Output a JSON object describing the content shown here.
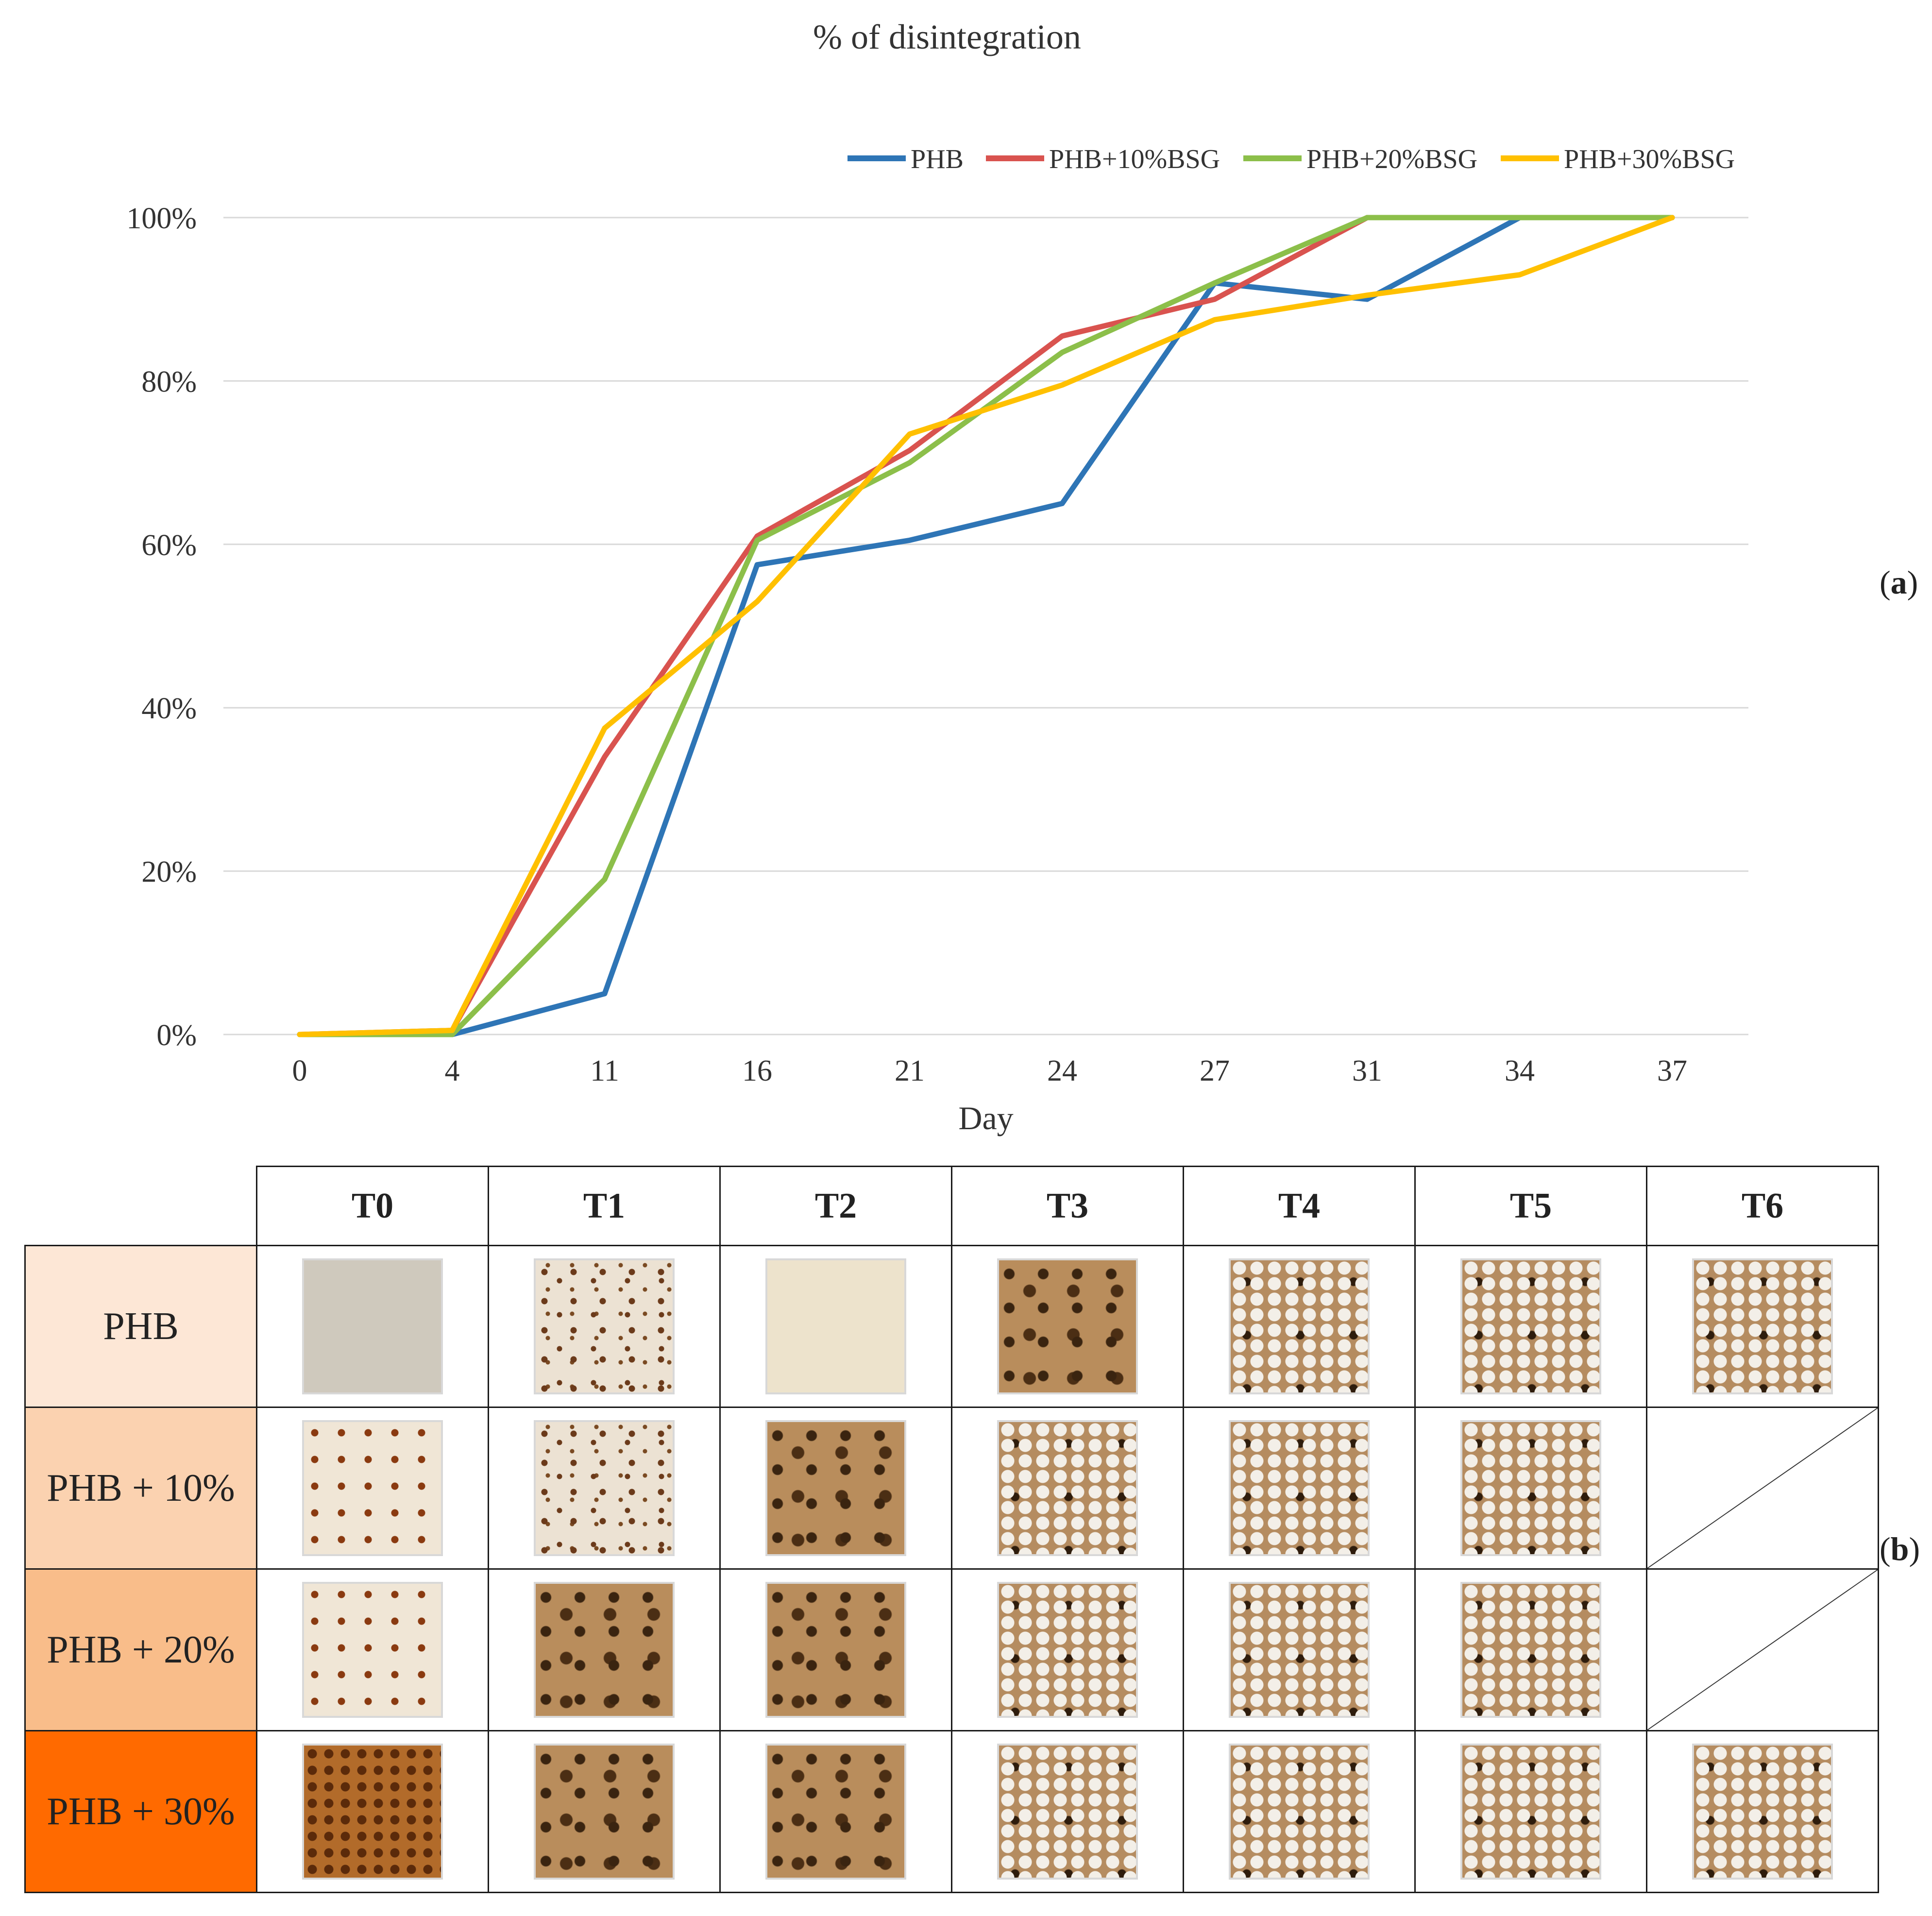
{
  "chart_data": {
    "type": "line",
    "title": "% of disintegration",
    "xlabel": "Day",
    "ylabel": "",
    "categories": [
      "0",
      "4",
      "11",
      "16",
      "21",
      "24",
      "27",
      "31",
      "34",
      "37"
    ],
    "ylim": [
      0,
      100
    ],
    "yticks": [
      0,
      20,
      40,
      60,
      80,
      100
    ],
    "ytick_labels": [
      "0%",
      "20%",
      "40%",
      "60%",
      "80%",
      "100%"
    ],
    "grid": true,
    "legend_position": "top-right",
    "series": [
      {
        "name": "PHB",
        "color": "#2e75b6",
        "values": [
          0,
          0,
          5,
          57.5,
          60.5,
          65,
          92,
          90,
          100,
          100
        ]
      },
      {
        "name": "PHB+10%BSG",
        "color": "#d9534f",
        "values": [
          0,
          0.5,
          34,
          61,
          71.5,
          85.5,
          90,
          100,
          100,
          100
        ]
      },
      {
        "name": "PHB+20%BSG",
        "color": "#8cbf4a",
        "values": [
          0,
          0,
          19,
          60.5,
          70,
          83.5,
          92,
          100,
          100,
          100
        ]
      },
      {
        "name": "PHB+30%BSG",
        "color": "#ffc000",
        "values": [
          0,
          0.5,
          37.5,
          53,
          73.5,
          79.5,
          87.5,
          90.5,
          93,
          100
        ]
      }
    ]
  },
  "panel_labels": {
    "a": "a",
    "b": "b"
  },
  "table": {
    "columns": [
      "T0",
      "T1",
      "T2",
      "T3",
      "T4",
      "T5",
      "T6"
    ],
    "rows": [
      {
        "label": "PHB",
        "color": "#fde7d6",
        "samples": [
          "square",
          "speck",
          "cream",
          "crumble",
          "mesh",
          "mesh",
          "mesh"
        ]
      },
      {
        "label": "PHB + 10%",
        "color": "#fbd2b0",
        "samples": [
          "orange-speck",
          "speck",
          "crumble",
          "mesh",
          "mesh",
          "mesh",
          "none"
        ]
      },
      {
        "label": "PHB + 20%",
        "color": "#f9bd8a",
        "samples": [
          "orange-speck",
          "crumble",
          "crumble",
          "mesh",
          "mesh",
          "mesh",
          "none"
        ]
      },
      {
        "label": "PHB + 30%",
        "color": "#ff6a00",
        "samples": [
          "dense",
          "crumble",
          "crumble",
          "mesh",
          "mesh",
          "mesh",
          "mesh"
        ]
      }
    ]
  }
}
